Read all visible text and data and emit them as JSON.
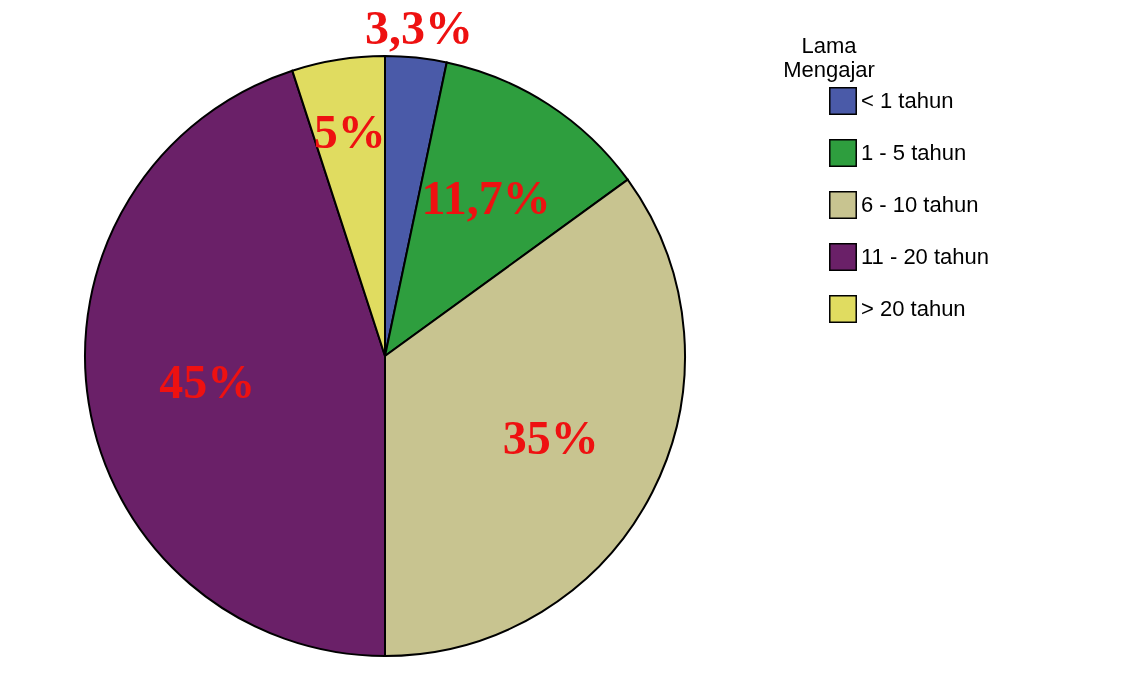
{
  "chart_data": {
    "type": "pie",
    "legend_title": "Lama Mengajar",
    "legend": "right",
    "categories": [
      "< 1 tahun",
      "1 - 5 tahun",
      "6 - 10 tahun",
      "11 - 20 tahun",
      "> 20 tahun"
    ],
    "values": [
      3.3,
      11.7,
      35,
      45,
      5
    ],
    "value_labels": [
      "3,3%",
      "11,7%",
      "35%",
      "45%",
      "5%"
    ],
    "colors": [
      "#4a5aa8",
      "#2e9e3e",
      "#c8c490",
      "#6a2068",
      "#e0dc60"
    ]
  }
}
